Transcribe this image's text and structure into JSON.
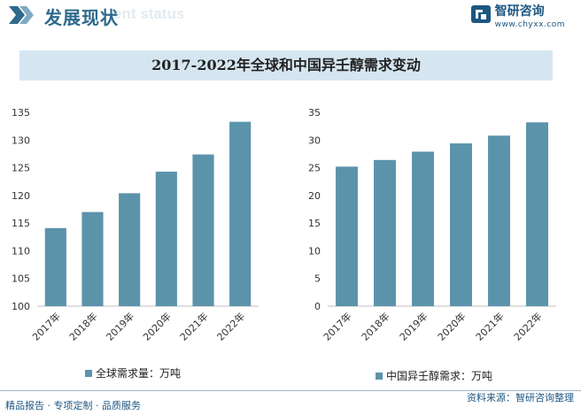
{
  "header": {
    "title": "发展现状",
    "ghost_text": "ent status"
  },
  "brand": {
    "name": "智研咨询",
    "url": "www.chyxx.com"
  },
  "main_title": "2017-2022年全球和中国异壬醇需求变动",
  "colors": {
    "bar": "#5b93ab",
    "title_band": "#d5e6f1",
    "brand": "#1d5680"
  },
  "chart_data": [
    {
      "type": "bar",
      "categories": [
        "2017年",
        "2018年",
        "2019年",
        "2020年",
        "2021年",
        "2022年"
      ],
      "series": [
        {
          "name": "全球需求量：万吨",
          "values": [
            114.1,
            117.0,
            120.4,
            124.3,
            127.4,
            133.3
          ]
        }
      ],
      "ylim": [
        100,
        135
      ],
      "yticks": [
        100,
        105,
        110,
        115,
        120,
        125,
        130,
        135
      ],
      "legend": "bottom-left",
      "grid": false
    },
    {
      "type": "bar",
      "categories": [
        "2017年",
        "2018年",
        "2019年",
        "2020年",
        "2021年",
        "2022年"
      ],
      "series": [
        {
          "name": "中国异壬醇需求：万吨",
          "values": [
            25.2,
            26.4,
            27.9,
            29.4,
            30.8,
            33.2
          ]
        }
      ],
      "ylim": [
        0,
        35
      ],
      "yticks": [
        0,
        5,
        10,
        15,
        20,
        25,
        30,
        35
      ],
      "legend": "bottom-left",
      "grid": false
    }
  ],
  "footer": {
    "slogan": "精品报告 · 专项定制 · 品质服务",
    "source_label": "资料来源：",
    "source_value": "智研咨询整理"
  }
}
